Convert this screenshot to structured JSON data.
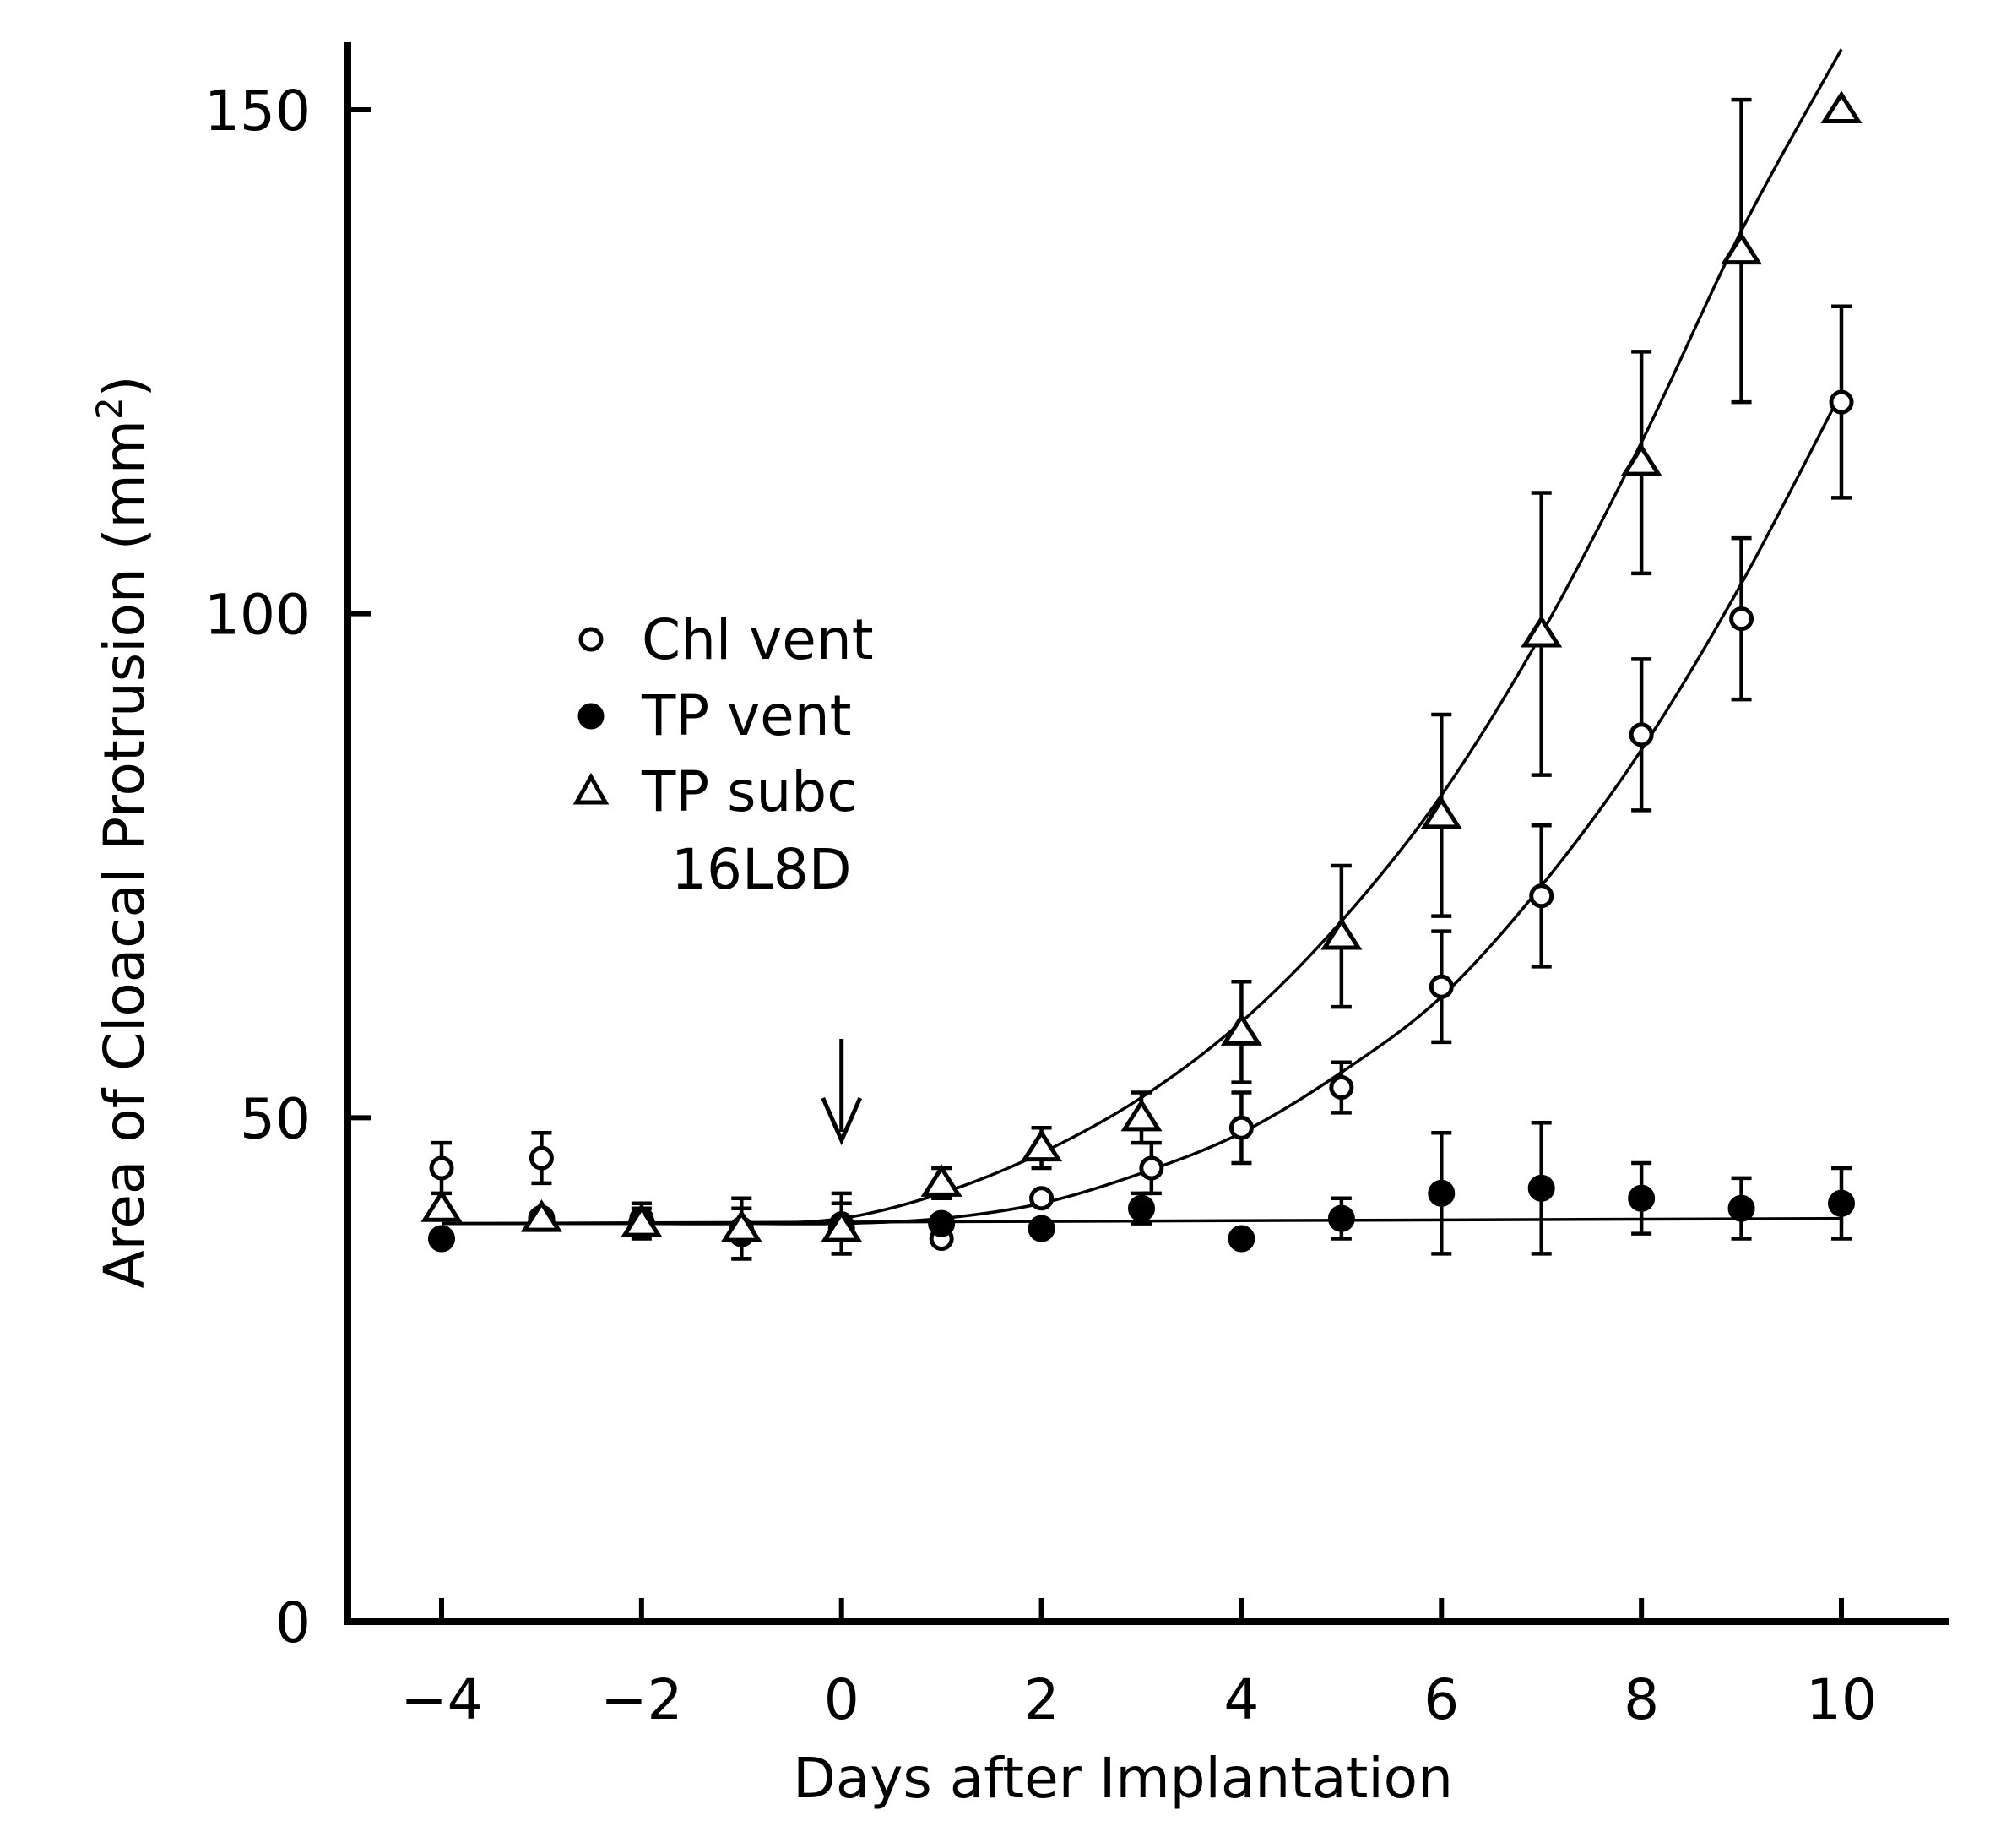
{
  "chart_data": {
    "type": "scatter",
    "title": "",
    "xlabel": "Days after Implantation",
    "ylabel": "Area of Cloacal Protrusion (mm",
    "ylabel_superscript": "2",
    "ylabel_close": ")",
    "xlim": [
      -4.8,
      11.3
    ],
    "ylim": [
      0,
      160
    ],
    "x_ticks": [
      -4,
      -2,
      0,
      2,
      4,
      6,
      8,
      10
    ],
    "x_tick_labels": [
      "−4",
      "−2",
      "0",
      "2",
      "4",
      "6",
      "8",
      "10"
    ],
    "y_ticks": [
      0,
      50,
      100,
      150
    ],
    "y_tick_labels": [
      "0",
      "50",
      "100",
      "150"
    ],
    "grid": false,
    "legend_position": "upper-left",
    "legend_note": "16L8D",
    "implantation_marker_x": 0,
    "series": [
      {
        "name": "Chl vent",
        "marker": "open-circle",
        "x": [
          -4,
          -3,
          -2,
          -1,
          0,
          1,
          2,
          3.1,
          4,
          5,
          6,
          7,
          8,
          9,
          10
        ],
        "y": [
          45,
          46,
          40,
          39,
          39.5,
          38,
          42,
          45,
          49,
          53,
          63,
          72,
          88,
          99.5,
          121
        ],
        "err": [
          2.5,
          2.5,
          1.5,
          3,
          3,
          0,
          0,
          2.5,
          3.5,
          2.5,
          5.5,
          7,
          7.5,
          8,
          9.5
        ],
        "fit_x": [
          -4,
          -3,
          -2,
          -1,
          0,
          1,
          2,
          3,
          4,
          5,
          6,
          7,
          8,
          9,
          10
        ],
        "fit_y": [
          39.5,
          39.5,
          39.5,
          39.5,
          39.5,
          40,
          41.5,
          44.5,
          48.5,
          54.5,
          62,
          73,
          86.5,
          103,
          122
        ]
      },
      {
        "name": "TP vent",
        "marker": "filled-circle",
        "x": [
          -4,
          -3,
          -2,
          -1,
          0,
          1,
          2,
          3,
          4,
          5,
          6,
          7,
          8,
          9,
          10
        ],
        "y": [
          38,
          40,
          39.5,
          38.5,
          39,
          39.5,
          39,
          41,
          38,
          40,
          42.5,
          43,
          42,
          41,
          41.5
        ],
        "err": [
          0,
          0,
          1.5,
          2.5,
          2.5,
          0,
          0,
          1.5,
          0,
          2,
          6,
          6.5,
          3.5,
          3,
          3.5
        ],
        "fit_x": [
          -4,
          10
        ],
        "fit_y": [
          39.5,
          40
        ]
      },
      {
        "name": "TP subc",
        "marker": "open-triangle",
        "x": [
          -4,
          -3,
          -2,
          -1,
          0,
          1,
          2,
          3,
          4,
          5,
          6,
          7,
          8,
          9,
          10
        ],
        "y": [
          41,
          40,
          39.5,
          39,
          39,
          43.5,
          47,
          50,
          58.5,
          68,
          80,
          98,
          115,
          136,
          150
        ],
        "err": [
          0,
          0,
          0,
          0,
          0,
          1.5,
          2,
          2.5,
          5,
          7,
          10,
          14,
          11,
          15,
          0
        ],
        "fit_x": [
          -4,
          -3,
          -2,
          -1,
          0,
          1,
          2,
          3,
          4,
          5,
          6,
          7,
          8,
          9,
          10
        ],
        "fit_y": [
          39.5,
          39.5,
          39.5,
          39.5,
          40,
          42.5,
          46.5,
          52,
          59.5,
          69.5,
          82,
          98,
          117,
          138,
          156
        ]
      }
    ]
  }
}
